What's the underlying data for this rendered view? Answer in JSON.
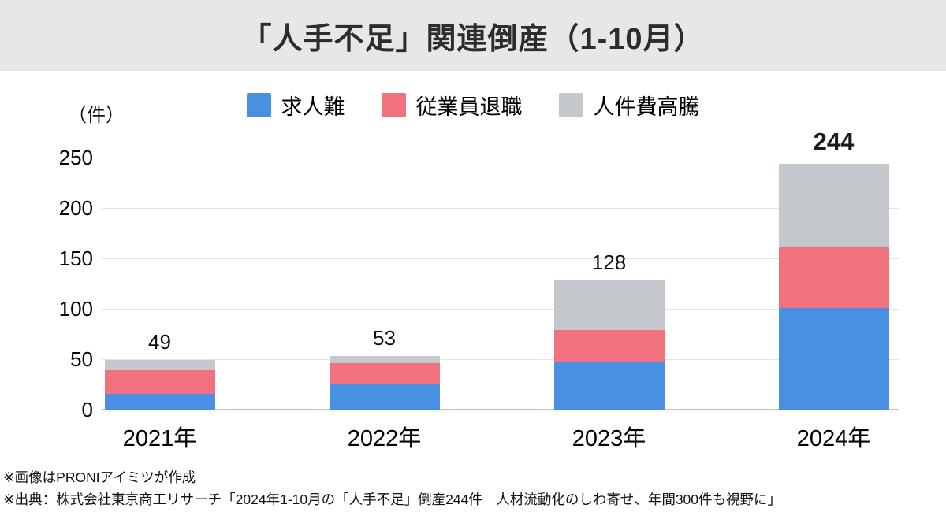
{
  "header": {
    "title": "「人手不足」関連倒産（1-10月）"
  },
  "chart_data": {
    "type": "bar",
    "stacked": true,
    "title": "「人手不足」関連倒産（1-10月）",
    "unit_label": "（件）",
    "categories": [
      "2021年",
      "2022年",
      "2023年",
      "2024年"
    ],
    "series": [
      {
        "name": "求人難",
        "color": "#4a90e2",
        "values": [
          16,
          25,
          47,
          101
        ]
      },
      {
        "name": "従業員退職",
        "color": "#f2717f",
        "values": [
          23,
          21,
          32,
          61
        ]
      },
      {
        "name": "人件費高騰",
        "color": "#c4c7cc",
        "values": [
          10,
          7,
          49,
          82
        ]
      }
    ],
    "totals": [
      49,
      53,
      128,
      244
    ],
    "total_label_bold": [
      false,
      false,
      false,
      true
    ],
    "yticks": [
      0,
      50,
      100,
      150,
      200,
      250
    ],
    "ylim": [
      0,
      250
    ],
    "grid": true,
    "legend_position": "top"
  },
  "footer": {
    "notes": [
      "※画像はPRONIアイミツが作成",
      "※出典：株式会社東京商工リサーチ「2024年1-10月の「人手不足」倒産244件　人材流動化のしわ寄せ、年間300件も視野に」"
    ]
  }
}
